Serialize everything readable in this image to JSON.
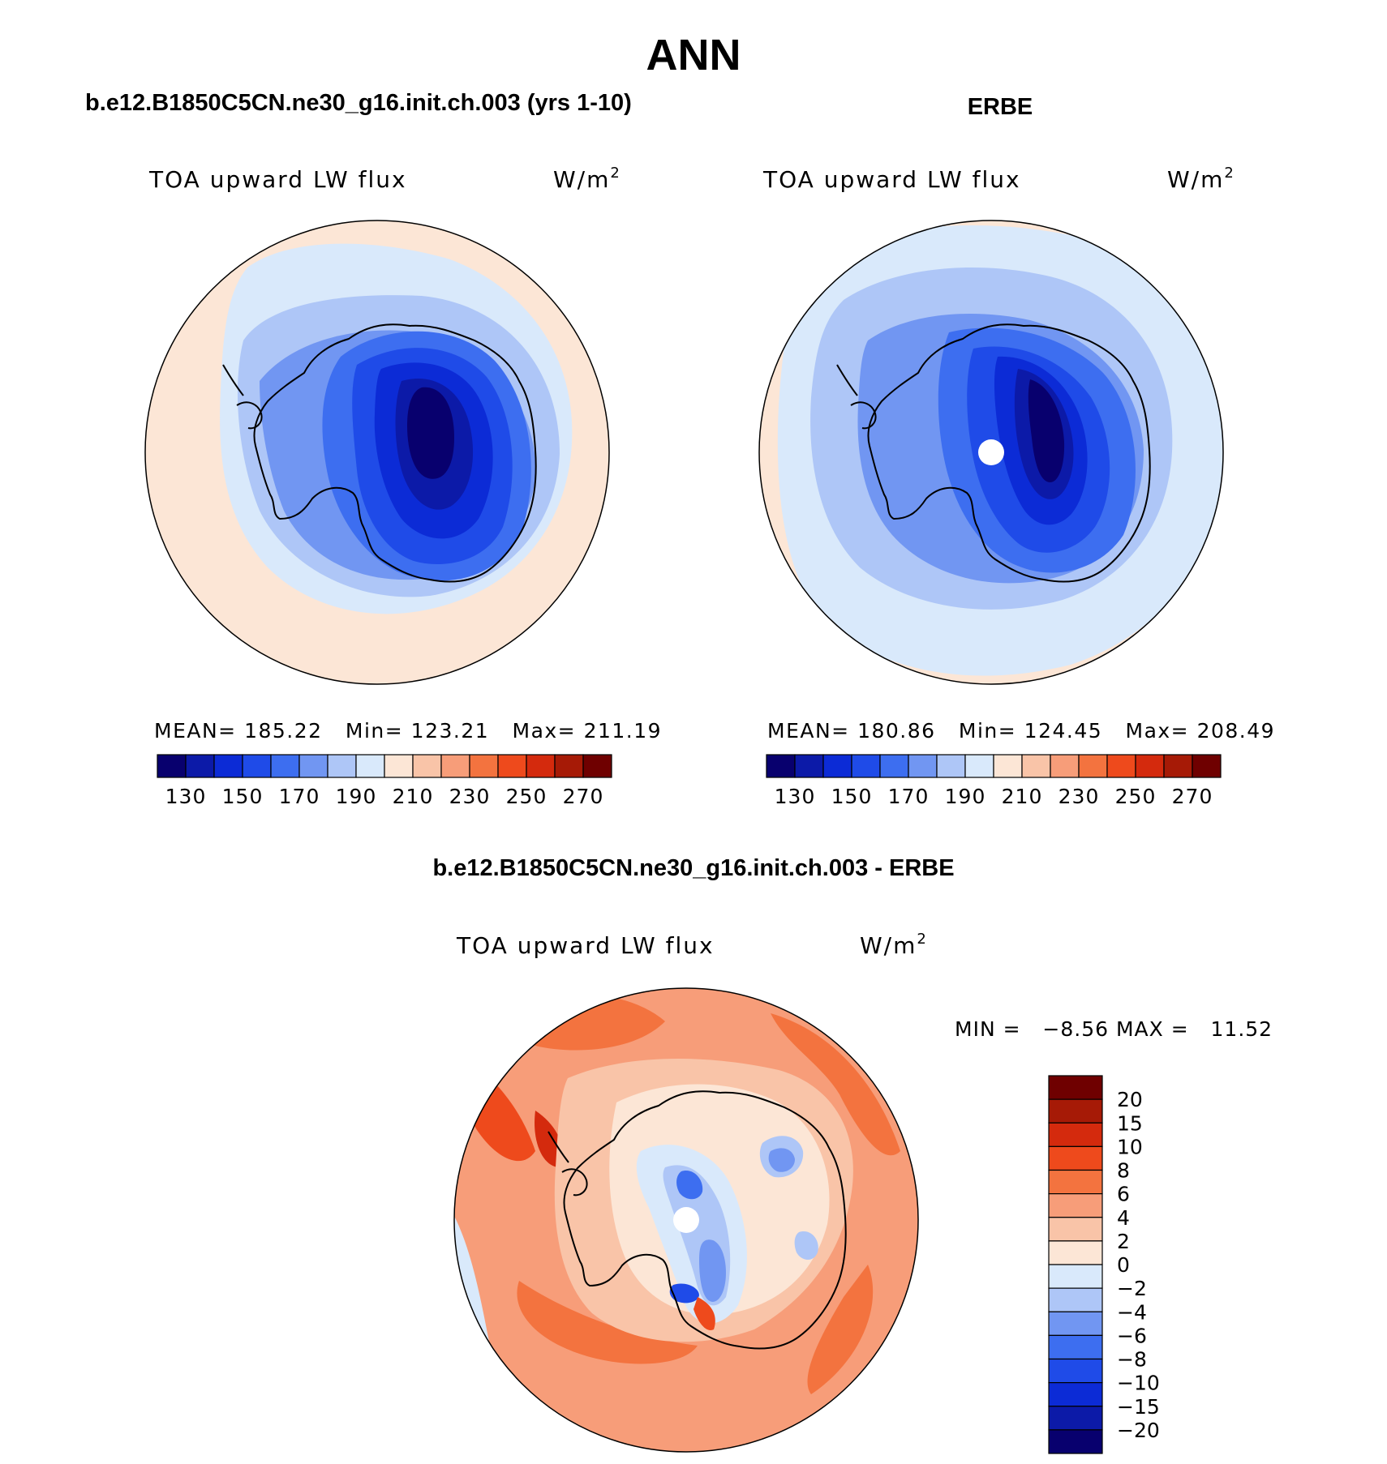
{
  "title": "ANN",
  "panels": [
    {
      "title": "b.e12.B1850C5CN.ne30_g16.init.ch.003 (yrs 1-10)",
      "variable": "TOA upward LW flux",
      "units": "W/m",
      "units_sup": "2",
      "stats": {
        "mean_label": "MEAN=",
        "mean": "185.22",
        "min_label": "Min=",
        "min": "123.21",
        "max_label": "Max=",
        "max": "211.19"
      }
    },
    {
      "title": "ERBE",
      "variable": "TOA upward LW flux",
      "units": "W/m",
      "units_sup": "2",
      "stats": {
        "mean_label": "MEAN=",
        "mean": "180.86",
        "min_label": "Min=",
        "min": "124.45",
        "max_label": "Max=",
        "max": "208.49"
      }
    },
    {
      "title": "b.e12.B1850C5CN.ne30_g16.init.ch.003 - ERBE",
      "variable": "TOA upward LW flux",
      "units": "W/m",
      "units_sup": "2",
      "stats": {
        "min_label": "MIN =",
        "min": "−8.56",
        "max_label": "MAX =",
        "max": "11.52"
      }
    }
  ],
  "chart_data": [
    {
      "type": "heatmap",
      "projection": "south polar stereographic",
      "title": "b.e12.B1850C5CN.ne30_g16.init.ch.003 (yrs 1-10)",
      "variable": "TOA upward LW flux",
      "units": "W/m2",
      "mean": 185.22,
      "min": 123.21,
      "max": 211.19,
      "colorbar": {
        "tick_labels": [
          "130",
          "150",
          "170",
          "190",
          "210",
          "230",
          "250",
          "270"
        ],
        "colors": [
          "#08006e",
          "#0c1aa8",
          "#0c2bd6",
          "#1f4be8",
          "#3d6ef0",
          "#7196f2",
          "#aec6f7",
          "#d9e9fb",
          "#fce6d6",
          "#f9c4a8",
          "#f79d79",
          "#f3733f",
          "#ee4a1c",
          "#d42a0d",
          "#a61a06",
          "#6f0000"
        ]
      }
    },
    {
      "type": "heatmap",
      "projection": "south polar stereographic",
      "title": "ERBE",
      "variable": "TOA upward LW flux",
      "units": "W/m2",
      "mean": 180.86,
      "min": 124.45,
      "max": 208.49,
      "colorbar": {
        "tick_labels": [
          "130",
          "150",
          "170",
          "190",
          "210",
          "230",
          "250",
          "270"
        ],
        "colors": [
          "#08006e",
          "#0c1aa8",
          "#0c2bd6",
          "#1f4be8",
          "#3d6ef0",
          "#7196f2",
          "#aec6f7",
          "#d9e9fb",
          "#fce6d6",
          "#f9c4a8",
          "#f79d79",
          "#f3733f",
          "#ee4a1c",
          "#d42a0d",
          "#a61a06",
          "#6f0000"
        ]
      }
    },
    {
      "type": "heatmap",
      "projection": "south polar stereographic",
      "title": "b.e12.B1850C5CN.ne30_g16.init.ch.003 - ERBE",
      "variable": "TOA upward LW flux",
      "units": "W/m2",
      "min": -8.56,
      "max": 11.52,
      "colorbar": {
        "orientation": "vertical",
        "tick_labels": [
          "20",
          "15",
          "10",
          "8",
          "6",
          "4",
          "2",
          "0",
          "−2",
          "−4",
          "−6",
          "−8",
          "−10",
          "−15",
          "−20"
        ],
        "colors": [
          "#6f0000",
          "#a61a06",
          "#d42a0d",
          "#ee4a1c",
          "#f3733f",
          "#f79d79",
          "#f9c4a8",
          "#fce6d6",
          "#d9e9fb",
          "#aec6f7",
          "#7196f2",
          "#3d6ef0",
          "#1f4be8",
          "#0c2bd6",
          "#0c1aa8",
          "#08006e"
        ]
      }
    }
  ]
}
